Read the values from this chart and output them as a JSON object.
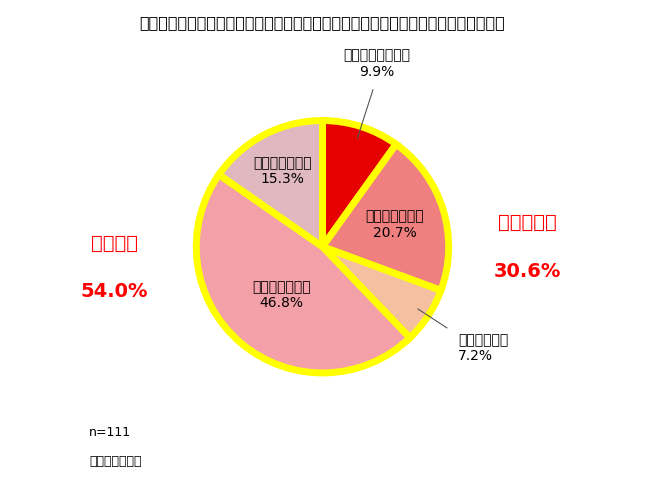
{
  "title": "「ある」と答えた方にお聞きします。学童保育探しは大変でしたか。　（単一回答）",
  "slices": [
    {
      "label": "とても大変だった",
      "pct": 9.9,
      "color": "#e60000",
      "label_inside": false
    },
    {
      "label": "少し大変だった",
      "pct": 20.7,
      "color": "#f08080",
      "label_inside": true
    },
    {
      "label": "少し楽だった",
      "pct": 7.2,
      "color": "#f4c0a0",
      "label_inside": false
    },
    {
      "label": "とても楽だった",
      "pct": 46.8,
      "color": "#f4a0a8",
      "label_inside": true
    },
    {
      "label": "どちらでもない",
      "pct": 15.3,
      "color": "#e0b8c0",
      "label_inside": true
    }
  ],
  "edge_color": "#ffff00",
  "edge_width": 5,
  "annotation_taihen_line1": "大変だった",
  "annotation_taihen_line2": "30.6%",
  "annotation_raku_line1": "楽だった",
  "annotation_raku_line2": "54.0%",
  "note_line1": "n=111",
  "note_line2": "（回答者のみ）",
  "background_color": "#ffffff",
  "title_fontsize": 11.5,
  "label_fontsize": 10,
  "annot_fontsize": 14
}
